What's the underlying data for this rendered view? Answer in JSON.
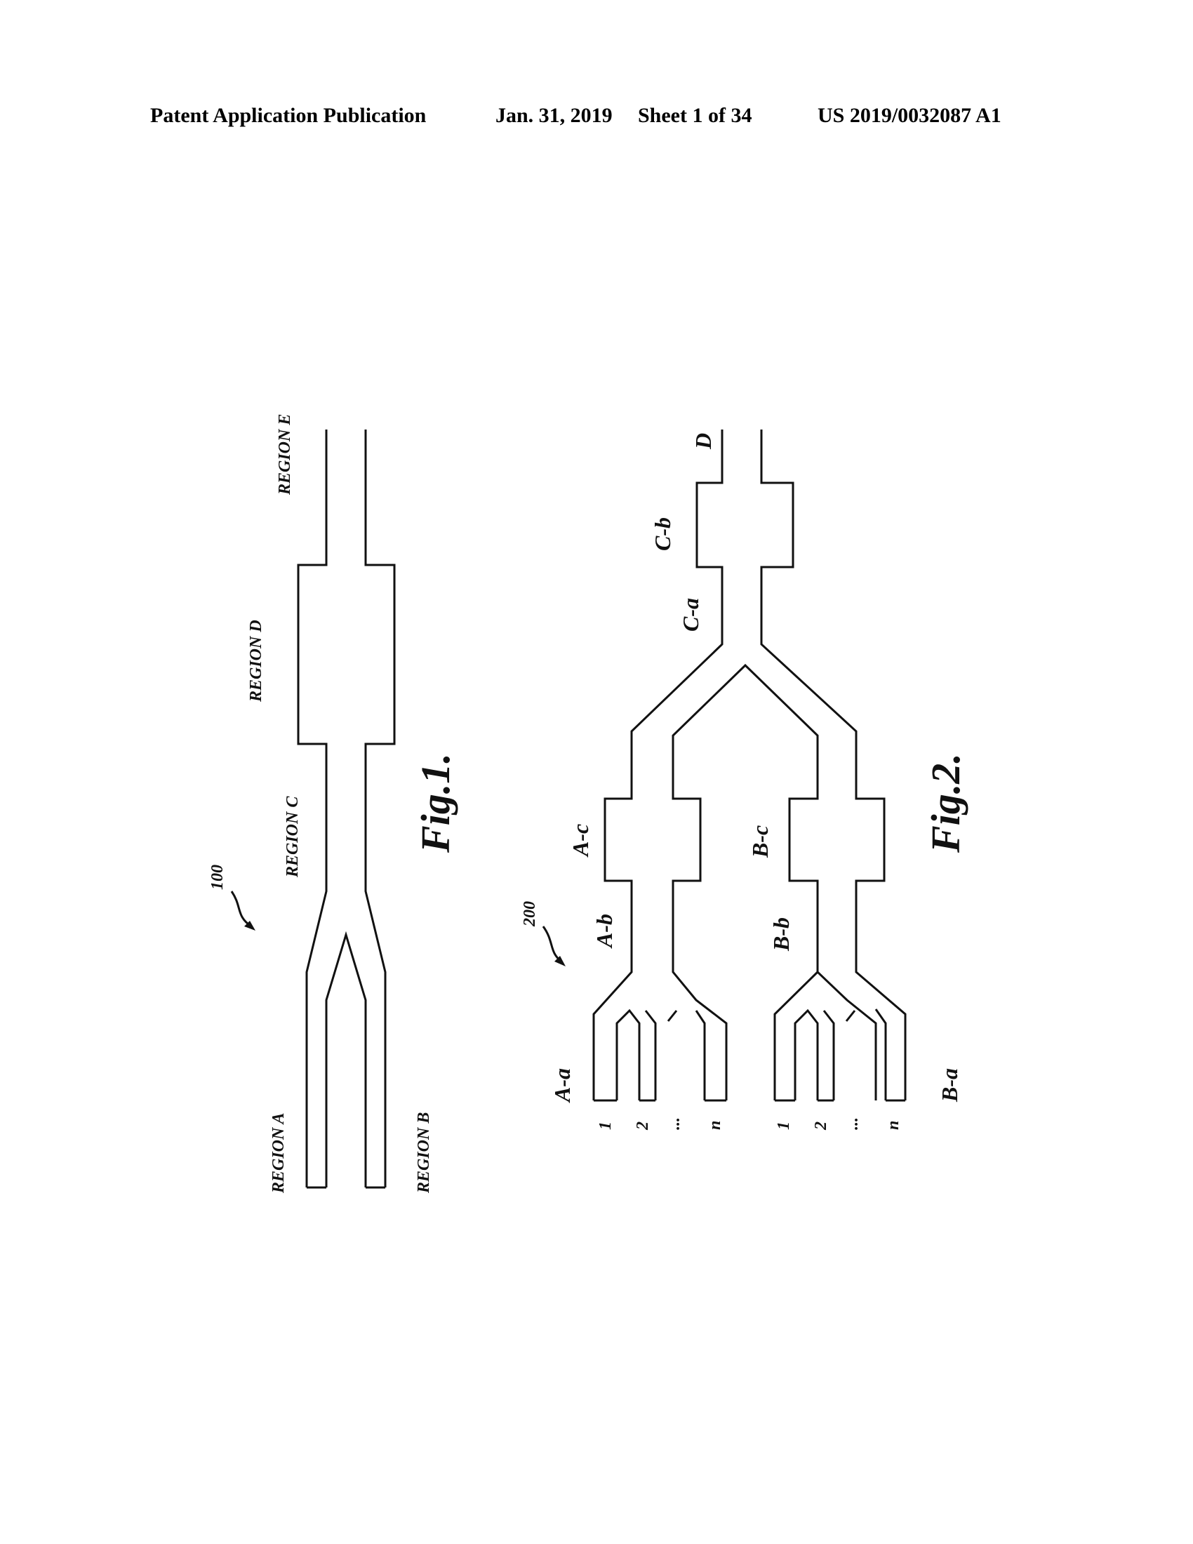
{
  "header": {
    "publication": "Patent Application Publication",
    "date": "Jan. 31, 2019",
    "sheet": "Sheet 1 of 34",
    "number": "US 2019/0032087 A1"
  },
  "fig1": {
    "caption": "Fig.1.",
    "ref": "100",
    "labels": {
      "region_a": "REGION A",
      "region_b": "REGION B",
      "region_c": "REGION C",
      "region_d": "REGION D",
      "region_e": "REGION E"
    }
  },
  "fig2": {
    "caption": "Fig.2.",
    "ref": "200",
    "labels": {
      "a_a": "A-a",
      "a_b": "A-b",
      "a_c": "A-c",
      "b_a": "B-a",
      "b_b": "B-b",
      "b_c": "B-c",
      "c_a": "C-a",
      "c_b": "C-b",
      "d": "D"
    },
    "inlets_a": [
      "1",
      "2",
      "...",
      "n"
    ],
    "inlets_b": [
      "1",
      "2",
      "...",
      "n"
    ]
  }
}
